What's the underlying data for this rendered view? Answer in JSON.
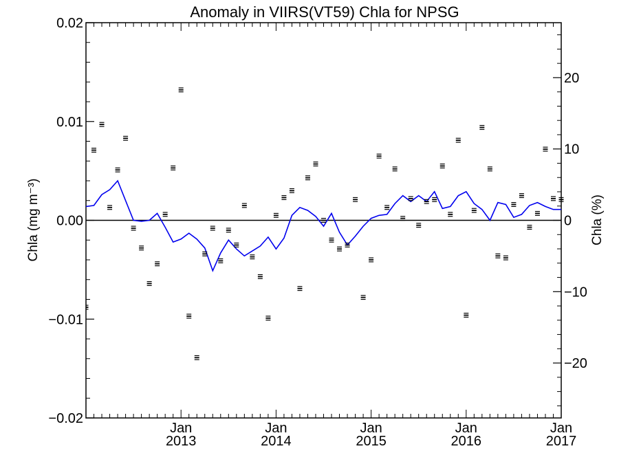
{
  "chart_data": {
    "type": "line",
    "title": "Anomaly in VIIRS(VT59) Chla for NPSG",
    "ylabel_left": "Chla (mg m⁻³)",
    "ylabel_right": "Chla (%)",
    "xlim": [
      "2012-01",
      "2017-01"
    ],
    "ylim_left": [
      -0.02,
      0.02
    ],
    "ylim_right": [
      -27.7,
      27.7
    ],
    "grid": false,
    "zero_line": true,
    "x_ticks": [
      {
        "month": "Jan",
        "year": "2013",
        "date": "2013-01"
      },
      {
        "month": "Jan",
        "year": "2014",
        "date": "2014-01"
      },
      {
        "month": "Jan",
        "year": "2015",
        "date": "2015-01"
      },
      {
        "month": "Jan",
        "year": "2016",
        "date": "2016-01"
      },
      {
        "month": "Jan",
        "year": "2017",
        "date": "2017-01"
      }
    ],
    "y_ticks_left": [
      "0.02",
      "0.01",
      "0.00",
      "-0.01",
      "-0.02"
    ],
    "y_ticks_right": [
      "20",
      "10",
      "0",
      "−10",
      "−20"
    ],
    "series": [
      {
        "type": "points_with_error_bars",
        "axis": "left",
        "color": "#000000",
        "x": [
          "2012-01",
          "2012-02",
          "2012-03",
          "2012-04",
          "2012-05",
          "2012-06",
          "2012-07",
          "2012-08",
          "2012-09",
          "2012-10",
          "2012-11",
          "2012-12",
          "2013-01",
          "2013-02",
          "2013-03",
          "2013-04",
          "2013-05",
          "2013-06",
          "2013-07",
          "2013-08",
          "2013-09",
          "2013-10",
          "2013-11",
          "2013-12",
          "2014-01",
          "2014-02",
          "2014-03",
          "2014-04",
          "2014-05",
          "2014-06",
          "2014-07",
          "2014-08",
          "2014-09",
          "2014-10",
          "2014-11",
          "2014-12",
          "2015-01",
          "2015-02",
          "2015-03",
          "2015-04",
          "2015-05",
          "2015-06",
          "2015-07",
          "2015-08",
          "2015-09",
          "2015-10",
          "2015-11",
          "2015-12",
          "2016-01",
          "2016-02",
          "2016-03",
          "2016-04",
          "2016-05",
          "2016-06",
          "2016-07",
          "2016-08",
          "2016-09",
          "2016-10",
          "2016-11",
          "2016-12",
          "2017-01"
        ],
        "y": [
          -0.0088,
          0.0071,
          0.0097,
          0.0013,
          0.0051,
          0.0083,
          -0.0008,
          -0.0028,
          -0.0064,
          -0.0044,
          0.0006,
          0.0053,
          0.0132,
          -0.0097,
          -0.0139,
          -0.0034,
          -0.0008,
          -0.0041,
          -0.001,
          -0.0025,
          0.0015,
          -0.0037,
          -0.0057,
          -0.0099,
          0.0005,
          0.0023,
          0.003,
          -0.0069,
          0.0043,
          0.0057,
          0.0,
          -0.002,
          -0.0029,
          -0.0025,
          0.0021,
          -0.0078,
          -0.004,
          0.0065,
          0.0013,
          0.0052,
          0.0002,
          0.0022,
          -0.0005,
          0.0019,
          0.0021,
          0.0055,
          0.0006,
          0.0081,
          -0.0096,
          0.001,
          0.0094,
          0.0052,
          -0.0036,
          -0.0038,
          0.0016,
          0.0025,
          -0.0007,
          0.0007,
          0.0072,
          0.0022,
          0.0021
        ],
        "error": 0.0002
      },
      {
        "type": "line",
        "axis": "left",
        "color": "#0000ee",
        "x": [
          "2012-01",
          "2012-02",
          "2012-03",
          "2012-04",
          "2012-05",
          "2012-06",
          "2012-07",
          "2012-08",
          "2012-09",
          "2012-10",
          "2012-11",
          "2012-12",
          "2013-01",
          "2013-02",
          "2013-03",
          "2013-04",
          "2013-05",
          "2013-06",
          "2013-07",
          "2013-08",
          "2013-09",
          "2013-10",
          "2013-11",
          "2013-12",
          "2014-01",
          "2014-02",
          "2014-03",
          "2014-04",
          "2014-05",
          "2014-06",
          "2014-07",
          "2014-08",
          "2014-09",
          "2014-10",
          "2014-11",
          "2014-12",
          "2015-01",
          "2015-02",
          "2015-03",
          "2015-04",
          "2015-05",
          "2015-06",
          "2015-07",
          "2015-08",
          "2015-09",
          "2015-10",
          "2015-11",
          "2015-12",
          "2016-01",
          "2016-02",
          "2016-03",
          "2016-04",
          "2016-05",
          "2016-06",
          "2016-07",
          "2016-08",
          "2016-09",
          "2016-10",
          "2016-11",
          "2016-12",
          "2017-01"
        ],
        "y": [
          0.0014,
          0.0015,
          0.0026,
          0.0031,
          0.004,
          0.002,
          0.0,
          -0.0001,
          0.0,
          0.0007,
          -0.0007,
          -0.0022,
          -0.0019,
          -0.0013,
          -0.0019,
          -0.0028,
          -0.0051,
          -0.0033,
          -0.002,
          -0.0029,
          -0.0036,
          -0.0031,
          -0.0026,
          -0.0017,
          -0.0029,
          -0.0018,
          0.0005,
          0.0013,
          0.001,
          0.0004,
          -0.0006,
          0.0007,
          -0.0012,
          -0.0025,
          -0.0016,
          -0.0006,
          0.0002,
          0.0005,
          0.0006,
          0.0017,
          0.0025,
          0.0019,
          0.0025,
          0.0019,
          0.0029,
          0.0012,
          0.0014,
          0.0025,
          0.0029,
          0.0017,
          0.0011,
          0.0,
          0.0018,
          0.0016,
          0.0003,
          0.0006,
          0.0015,
          0.0018,
          0.0014,
          0.0011,
          0.0011
        ]
      }
    ]
  }
}
